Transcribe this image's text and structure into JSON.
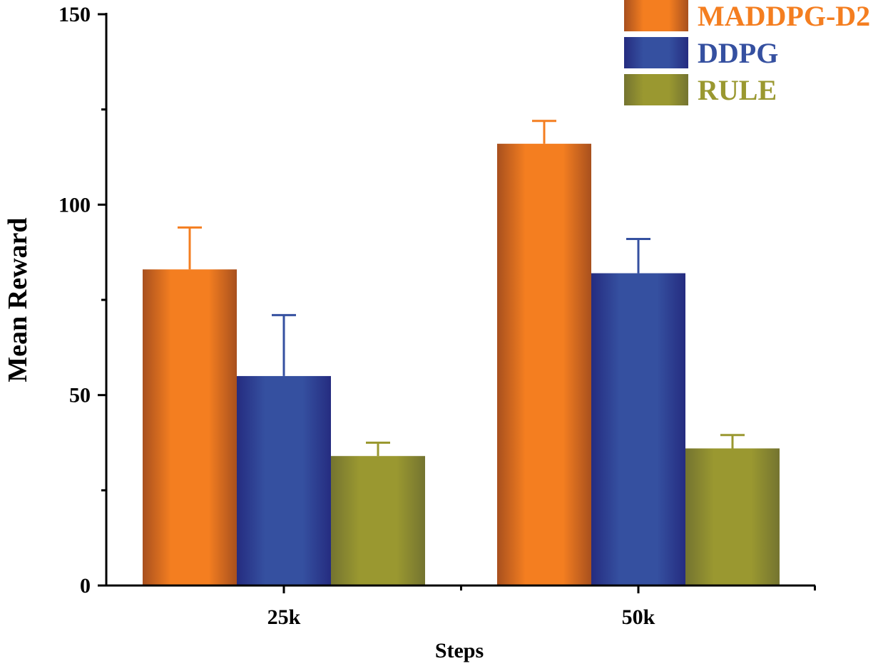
{
  "chart_data": {
    "type": "bar",
    "title": "",
    "xlabel": "Steps",
    "ylabel": "Mean Reward",
    "categories": [
      "25k",
      "50k"
    ],
    "ylim": [
      0,
      150
    ],
    "yticks": [
      0,
      50,
      100,
      150
    ],
    "ytick_labels": [
      "0",
      "50",
      "100",
      "150"
    ],
    "series": [
      {
        "name": "MADDPG-D2",
        "values": [
          83,
          116
        ],
        "errors": [
          11,
          6
        ],
        "color": "#F47E20",
        "edge": "#A8501E"
      },
      {
        "name": "DDPG",
        "values": [
          55,
          82
        ],
        "errors": [
          16,
          9
        ],
        "color": "#3550A0",
        "edge": "#252C80"
      },
      {
        "name": "RULE",
        "values": [
          34,
          36
        ],
        "errors": [
          3.5,
          3.5
        ],
        "color": "#9A9830",
        "edge": "#747430"
      }
    ],
    "legend": {
      "position": "top-right"
    }
  }
}
